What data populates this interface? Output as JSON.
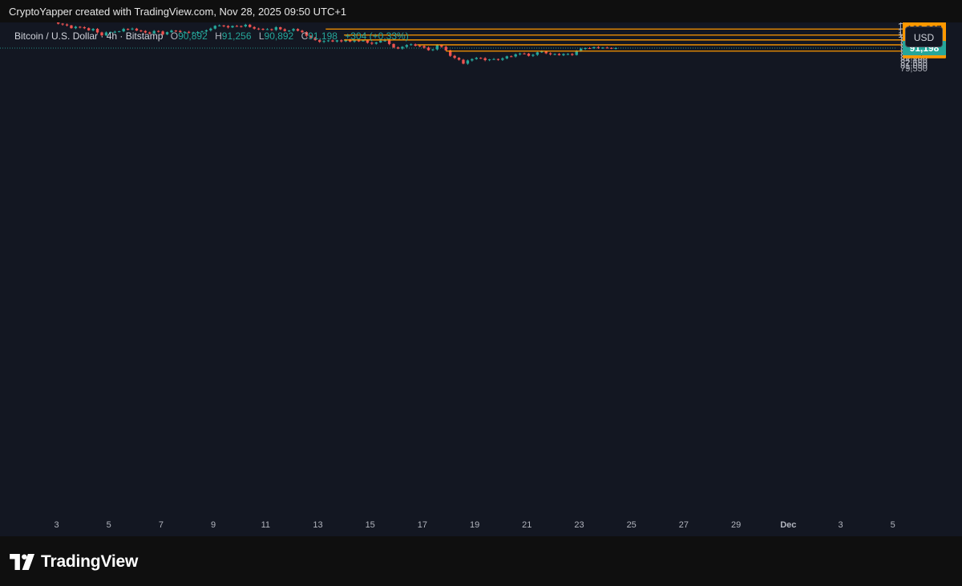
{
  "header": {
    "attribution": "CryptoYapper created with TradingView.com, Nov 28, 2025 09:50 UTC+1"
  },
  "legend": {
    "symbol": "Bitcoin / U.S. Dollar · 4h · Bitstamp",
    "open_key": "O",
    "open": "90,892",
    "high_key": "H",
    "high": "91,256",
    "low_key": "L",
    "low": "90,892",
    "close_key": "C",
    "close": "91,198",
    "change": "+304 (+0.33%)"
  },
  "currency_button": "USD",
  "footer": {
    "brand": "TradingView",
    "logo_icon": "tradingview-logo-icon"
  },
  "colors": {
    "background": "#131722",
    "up": "#26a69a",
    "down": "#ef5350",
    "level_line": "#ff9800",
    "level_label_bg": "#ff9800",
    "price_label_bg": "#26a69a",
    "axis_text": "#b2b5be"
  },
  "chart_data": {
    "type": "candlestick",
    "timeframe": "4h",
    "y_scale": "log",
    "y_ticks": [
      "110,000",
      "106,000",
      "102,000",
      "100,000",
      "98,000",
      "96,000",
      "94,000",
      "92,000",
      "90,000",
      "88,000",
      "86,000",
      "84,400",
      "82,650",
      "81,050",
      "79,550"
    ],
    "x_ticks": [
      "3",
      "5",
      "7",
      "9",
      "11",
      "13",
      "15",
      "17",
      "19",
      "21",
      "23",
      "25",
      "27",
      "29",
      "Dec",
      "3",
      "5"
    ],
    "current_price": 91198,
    "current_price_label": "91,198",
    "levels": [
      {
        "value": 103867,
        "label": "103,867",
        "start_date": "Nov 13"
      },
      {
        "value": 99695,
        "label": "99,695",
        "start_date": "Nov 14"
      },
      {
        "value": 96424,
        "label": "96,424",
        "start_date": "Nov 14"
      },
      {
        "value": 93254,
        "label": "93,254",
        "start_date": "Nov 17"
      },
      {
        "value": 89328,
        "label": "89,328",
        "start_date": "Nov 18"
      }
    ],
    "closes": [
      109900,
      109800,
      110000,
      109700,
      110500,
      110000,
      111000,
      109800,
      110800,
      109200,
      107800,
      107200,
      106500,
      104500,
      105500,
      105200,
      104500,
      103000,
      104000,
      101500,
      99500,
      101500,
      101800,
      102000,
      102300,
      104000,
      103800,
      104200,
      102800,
      102500,
      101500,
      100800,
      102500,
      102200,
      100200,
      101700,
      102800,
      102500,
      101800,
      101900,
      101400,
      101500,
      101800,
      102200,
      103000,
      104200,
      106200,
      106500,
      106000,
      105100,
      106100,
      106000,
      105800,
      107000,
      105300,
      104200,
      104000,
      103500,
      103800,
      103300,
      105200,
      103700,
      102600,
      102800,
      103900,
      102700,
      101700,
      99200,
      97900,
      96300,
      95200,
      95700,
      96100,
      95400,
      96200,
      95500,
      96600,
      95400,
      96000,
      95800,
      96000,
      94600,
      94000,
      94800,
      95900,
      96000,
      93800,
      91600,
      90900,
      92000,
      93100,
      93600,
      92700,
      92500,
      91500,
      89900,
      90400,
      93000,
      92000,
      89800,
      86500,
      85300,
      84200,
      82000,
      83800,
      84600,
      85300,
      85100,
      84000,
      84400,
      84600,
      84200,
      85000,
      86200,
      86100,
      87400,
      87900,
      87800,
      86500,
      87100,
      88600,
      89200,
      88000,
      87400,
      87600,
      86900,
      87600,
      87600,
      87000,
      89500,
      90800,
      91200,
      91100,
      91800,
      91400,
      91500,
      91300,
      91100,
      91200
    ]
  }
}
